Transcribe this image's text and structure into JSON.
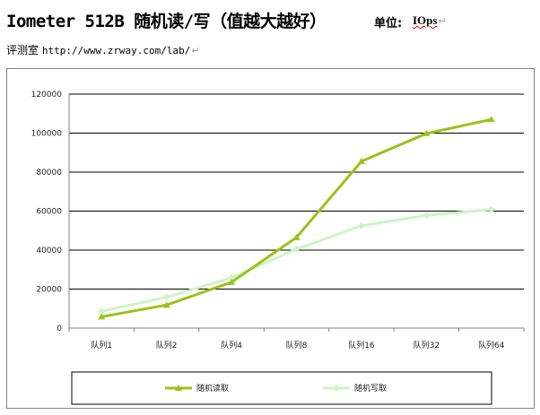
{
  "document": {
    "title": "Iometer 512B 随机读/写（值越大越好）",
    "unit_label": "单位:",
    "unit_value": "IOps",
    "paragraph_mark": "↵",
    "byline_label": "评测室",
    "byline_site": "http://www.zrway.com/lab/"
  },
  "chart_data": {
    "type": "line",
    "categories": [
      "队列1",
      "队列2",
      "队列4",
      "队列8",
      "队列16",
      "队列32",
      "队列64"
    ],
    "ylim": [
      0,
      120000
    ],
    "yticks": [
      "0",
      "20000",
      "40000",
      "60000",
      "80000",
      "100000",
      "120000"
    ],
    "grid": true,
    "legend_position": "bottom",
    "series": [
      {
        "name": "随机读取",
        "color": "#99c31a",
        "marker": "triangle",
        "values": [
          5800,
          11800,
          23500,
          46500,
          85500,
          99800,
          107000
        ]
      },
      {
        "name": "随机写取",
        "color": "#ccf5c6",
        "marker": "diamond",
        "values": [
          8600,
          15800,
          25800,
          40500,
          52500,
          57800,
          60800
        ]
      }
    ]
  }
}
